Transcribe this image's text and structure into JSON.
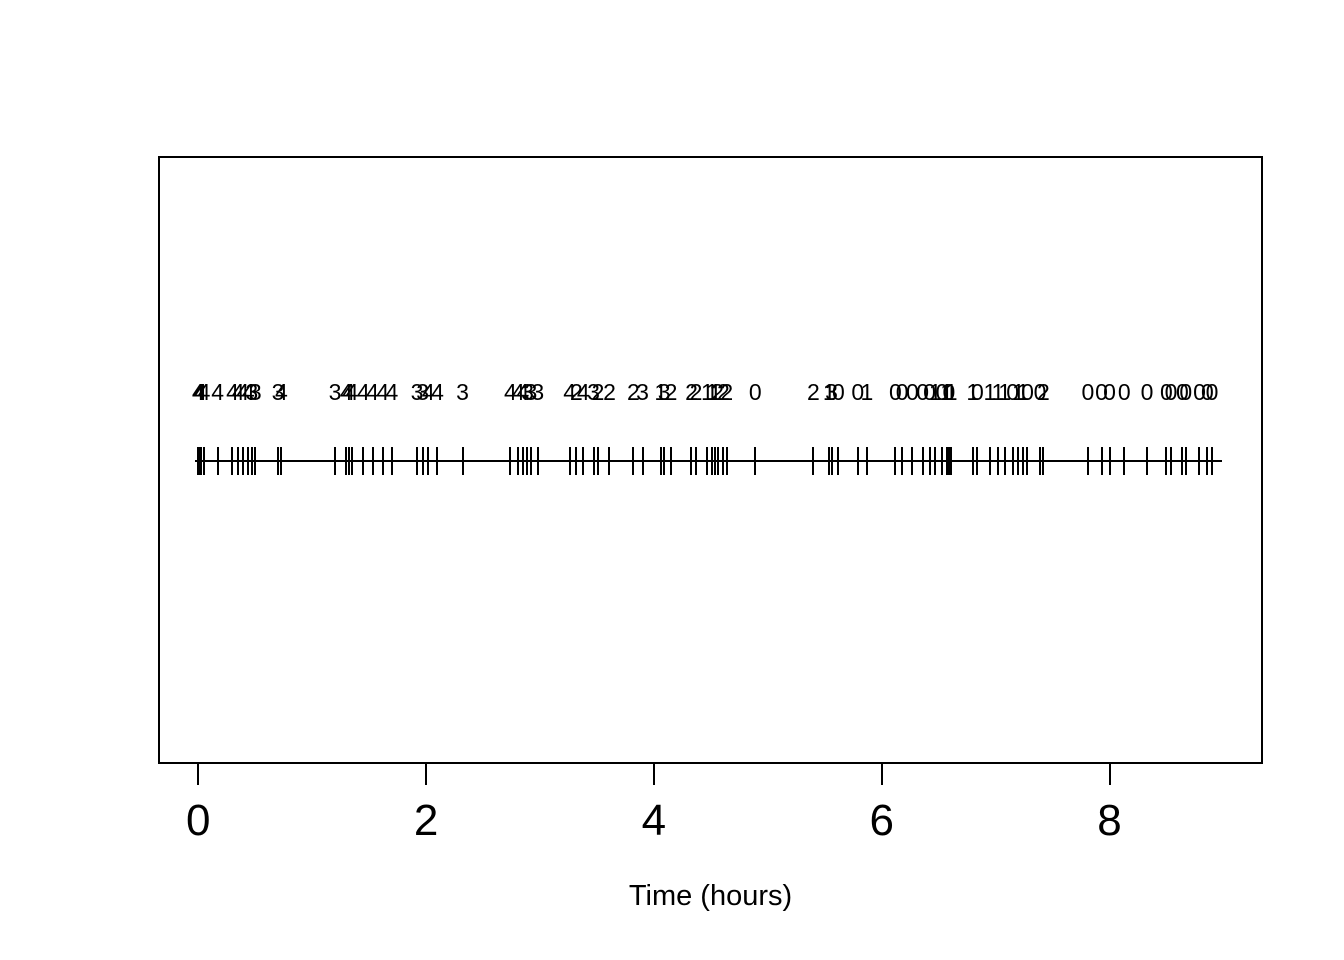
{
  "figure": {
    "background": "#ffffff",
    "foreground": "#000000"
  },
  "chart_data": {
    "type": "scatter",
    "subtype": "rug_event_plot",
    "title": "",
    "xlabel": "Time (hours)",
    "ylabel": "",
    "xlim": [
      0,
      9
    ],
    "x_ticks": [
      0,
      2,
      4,
      6,
      8
    ],
    "x_tick_labels": [
      "0",
      "2",
      "4",
      "6",
      "8"
    ],
    "grid": "off",
    "legend": "none",
    "events": {
      "description": "event times in hours with the count digit printed above each rug tick",
      "times": [
        0.0,
        0.01,
        0.02,
        0.05,
        0.17,
        0.3,
        0.35,
        0.39,
        0.44,
        0.47,
        0.5,
        0.7,
        0.73,
        1.2,
        1.3,
        1.32,
        1.35,
        1.45,
        1.53,
        1.62,
        1.7,
        1.92,
        1.97,
        2.02,
        2.1,
        2.32,
        2.74,
        2.81,
        2.85,
        2.89,
        2.92,
        2.98,
        3.26,
        3.32,
        3.38,
        3.47,
        3.51,
        3.61,
        3.82,
        3.9,
        4.06,
        4.09,
        4.15,
        4.33,
        4.37,
        4.47,
        4.51,
        4.54,
        4.56,
        4.61,
        4.64,
        4.89,
        5.4,
        5.54,
        5.56,
        5.62,
        5.79,
        5.87,
        6.12,
        6.18,
        6.27,
        6.36,
        6.42,
        6.47,
        6.53,
        6.57,
        6.59,
        6.61,
        6.8,
        6.84,
        6.95,
        7.02,
        7.08,
        7.15,
        7.2,
        7.24,
        7.28,
        7.39,
        7.42,
        7.81,
        7.93,
        8.0,
        8.13,
        8.33,
        8.5,
        8.54,
        8.64,
        8.67,
        8.79,
        8.86,
        8.9
      ],
      "counts": [
        "4",
        "4",
        "4",
        "4",
        "4",
        "4",
        "4",
        "4",
        "4",
        "3",
        "3",
        "3",
        "4",
        "3",
        "4",
        "4",
        "4",
        "4",
        "4",
        "4",
        "4",
        "3",
        "3",
        "4",
        "4",
        "3",
        "4",
        "4",
        "4",
        "3",
        "3",
        "3",
        "4",
        "2",
        "4",
        "3",
        "2",
        "2",
        "2",
        "3",
        "1",
        "3",
        "2",
        "2",
        "2",
        "1",
        "1",
        "1",
        "2",
        "2",
        "2",
        "0",
        "2",
        "1",
        "3",
        "0",
        "0",
        "1",
        "0",
        "0",
        "0",
        "0",
        "0",
        "1",
        "0",
        "1",
        "0",
        "1",
        "1",
        "0",
        "1",
        "1",
        "1",
        "0",
        "1",
        "1",
        "0",
        "0",
        "2",
        "0",
        "0",
        "0",
        "0",
        "0",
        "0",
        "0",
        "0",
        "0",
        "0",
        "0",
        "0"
      ]
    }
  }
}
